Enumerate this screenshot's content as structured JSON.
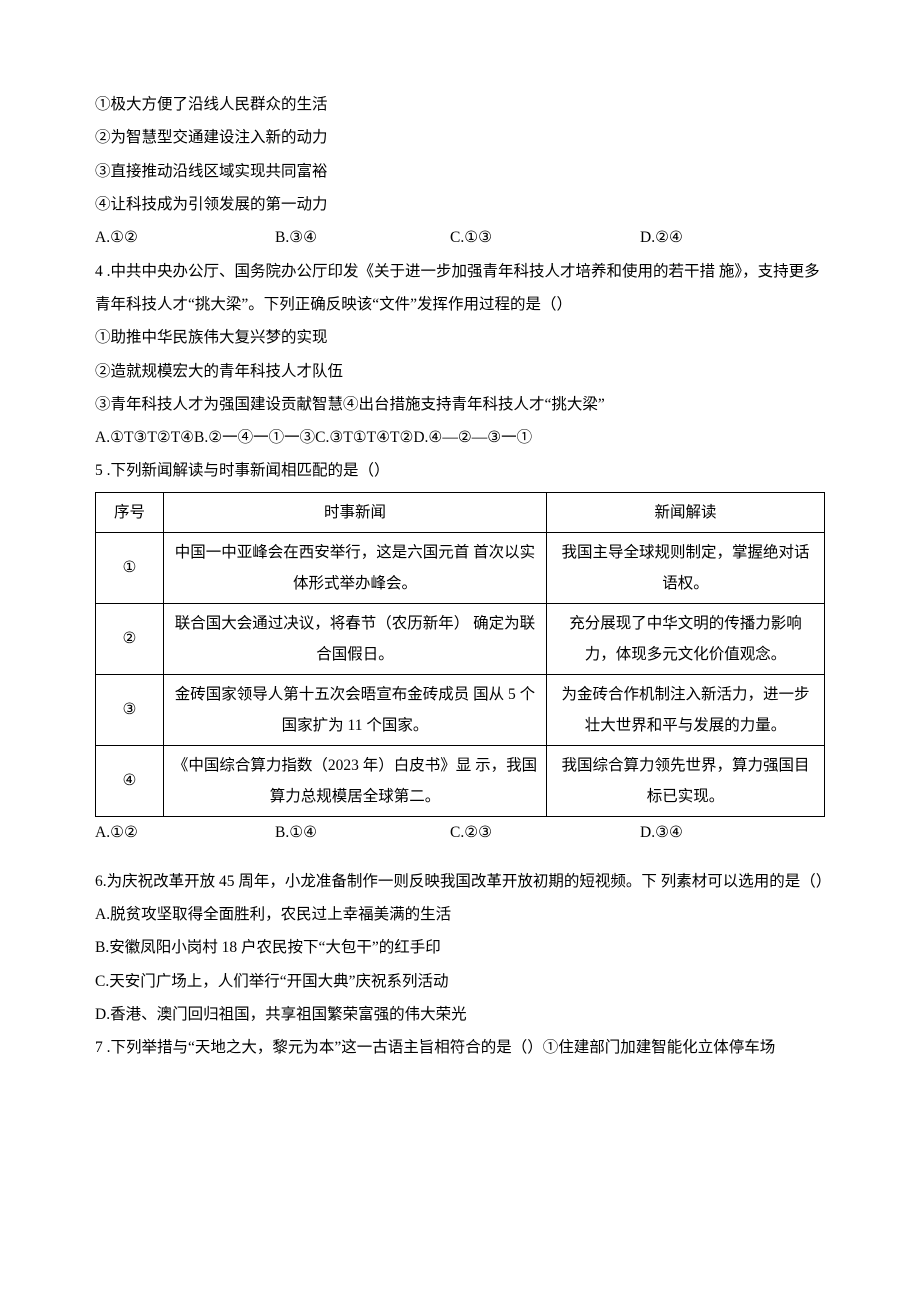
{
  "lines": {
    "l1": "①极大方便了沿线人民群众的生活",
    "l2": "②为智慧型交通建设注入新的动力",
    "l3": "③直接推动沿线区域实现共同富裕",
    "l4": "④让科技成为引领发展的第一动力"
  },
  "q3opts": {
    "a": "A.①②",
    "b": "B.③④",
    "c": "C.①③",
    "d": "D.②④"
  },
  "q4": {
    "stem": "4 .中共中央办公厅、国务院办公厅印发《关于进一步加强青年科技人才培养和使用的若干措 施》，支持更多青年科技人才“挑大梁”。下列正确反映该“文件”发挥作用过程的是（）",
    "s1": "①助推中华民族伟大复兴梦的实现",
    "s2": "②造就规模宏大的青年科技人才队伍",
    "s3": "③青年科技人才为强国建设贡献智慧④出台措施支持青年科技人才“挑大梁”",
    "opts": "A.①T③T②T④B.②一④一①一③C.③T①T④T②D.④—②—③一①"
  },
  "q5": {
    "stem": "5 .下列新闻解读与时事新闻相匹配的是（）",
    "head": {
      "seq": "序号",
      "event": "时事新闻",
      "interp": "新闻解读"
    },
    "rows": [
      {
        "seq": "①",
        "event": "中国一中亚峰会在西安举行，这是六国元首 首次以实体形式举办峰会。",
        "interp": "我国主导全球规则制定，掌握绝对话 语权。"
      },
      {
        "seq": "②",
        "event": "联合国大会通过决议，将春节（农历新年） 确定为联合国假日。",
        "interp": "充分展现了中华文明的传播力影响 力，体现多元文化价值观念。"
      },
      {
        "seq": "③",
        "event": "金砖国家领导人第十五次会晤宣布金砖成员 国从 5 个国家扩为 11 个国家。",
        "interp": "为金砖合作机制注入新活力，进一步 壮大世界和平与发展的力量。"
      },
      {
        "seq": "④",
        "event": "《中国综合算力指数（2023 年）白皮书》显 示，我国算力总规模居全球第二。",
        "interp": "我国综合算力领先世界，算力强国目 标已实现。"
      }
    ],
    "opts": {
      "a": "A.①②",
      "b": "B.①④",
      "c": "C.②③",
      "d": "D.③④"
    }
  },
  "q6": {
    "stem": "6.为庆祝改革开放 45 周年，小龙准备制作一则反映我国改革开放初期的短视频。下 列素材可以选用的是（）",
    "a": "A.脱贫攻坚取得全面胜利，农民过上幸福美满的生活",
    "b": "B.安徽凤阳小岗村 18 户农民按下“大包干”的红手印",
    "c": "C.天安门广场上，人们举行“开国大典”庆祝系列活动",
    "d": "D.香港、澳门回归祖国，共享祖国繁荣富强的伟大荣光"
  },
  "q7": {
    "stem": "7 .下列举措与“天地之大，黎元为本”这一古语主旨相符合的是（）①住建部门加建智能化立体停车场"
  }
}
